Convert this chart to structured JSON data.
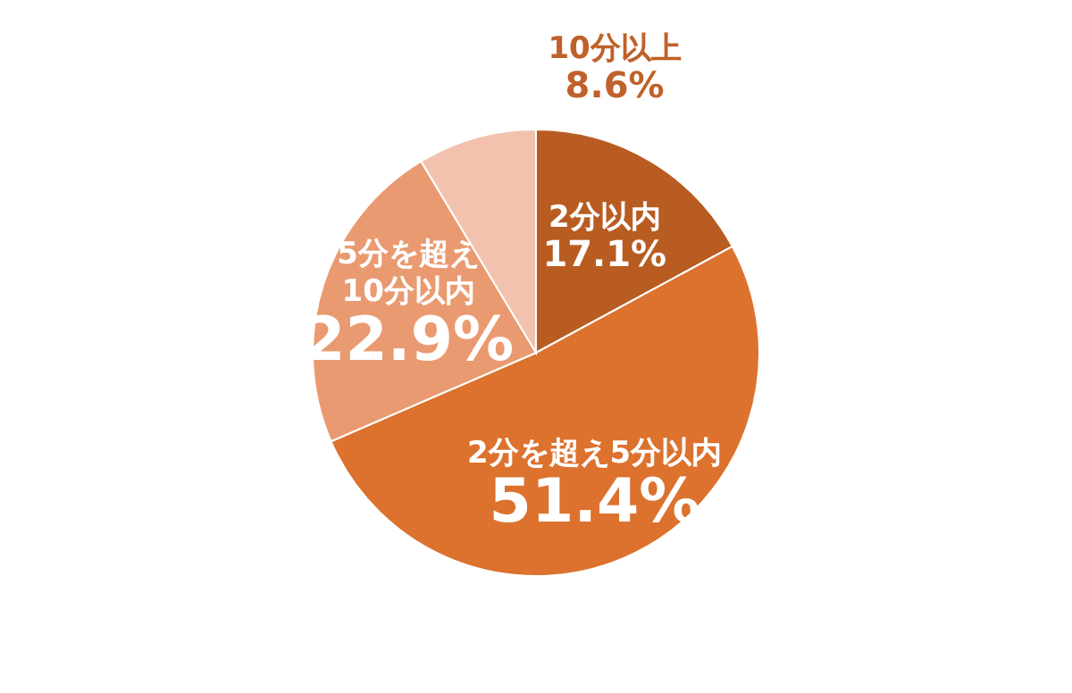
{
  "chart_data": {
    "type": "pie",
    "categories": [
      "2分以内",
      "2分を超え5分以内",
      "5分を超え\n10分以内",
      "10分以上"
    ],
    "values": [
      17.1,
      51.4,
      22.9,
      8.6
    ],
    "colors": [
      "#b85c22",
      "#dc722e",
      "#ea9a70",
      "#f2c2ae"
    ],
    "value_labels": [
      "17.1%",
      "51.4%",
      "22.9%",
      "8.6%"
    ],
    "legend": false
  }
}
